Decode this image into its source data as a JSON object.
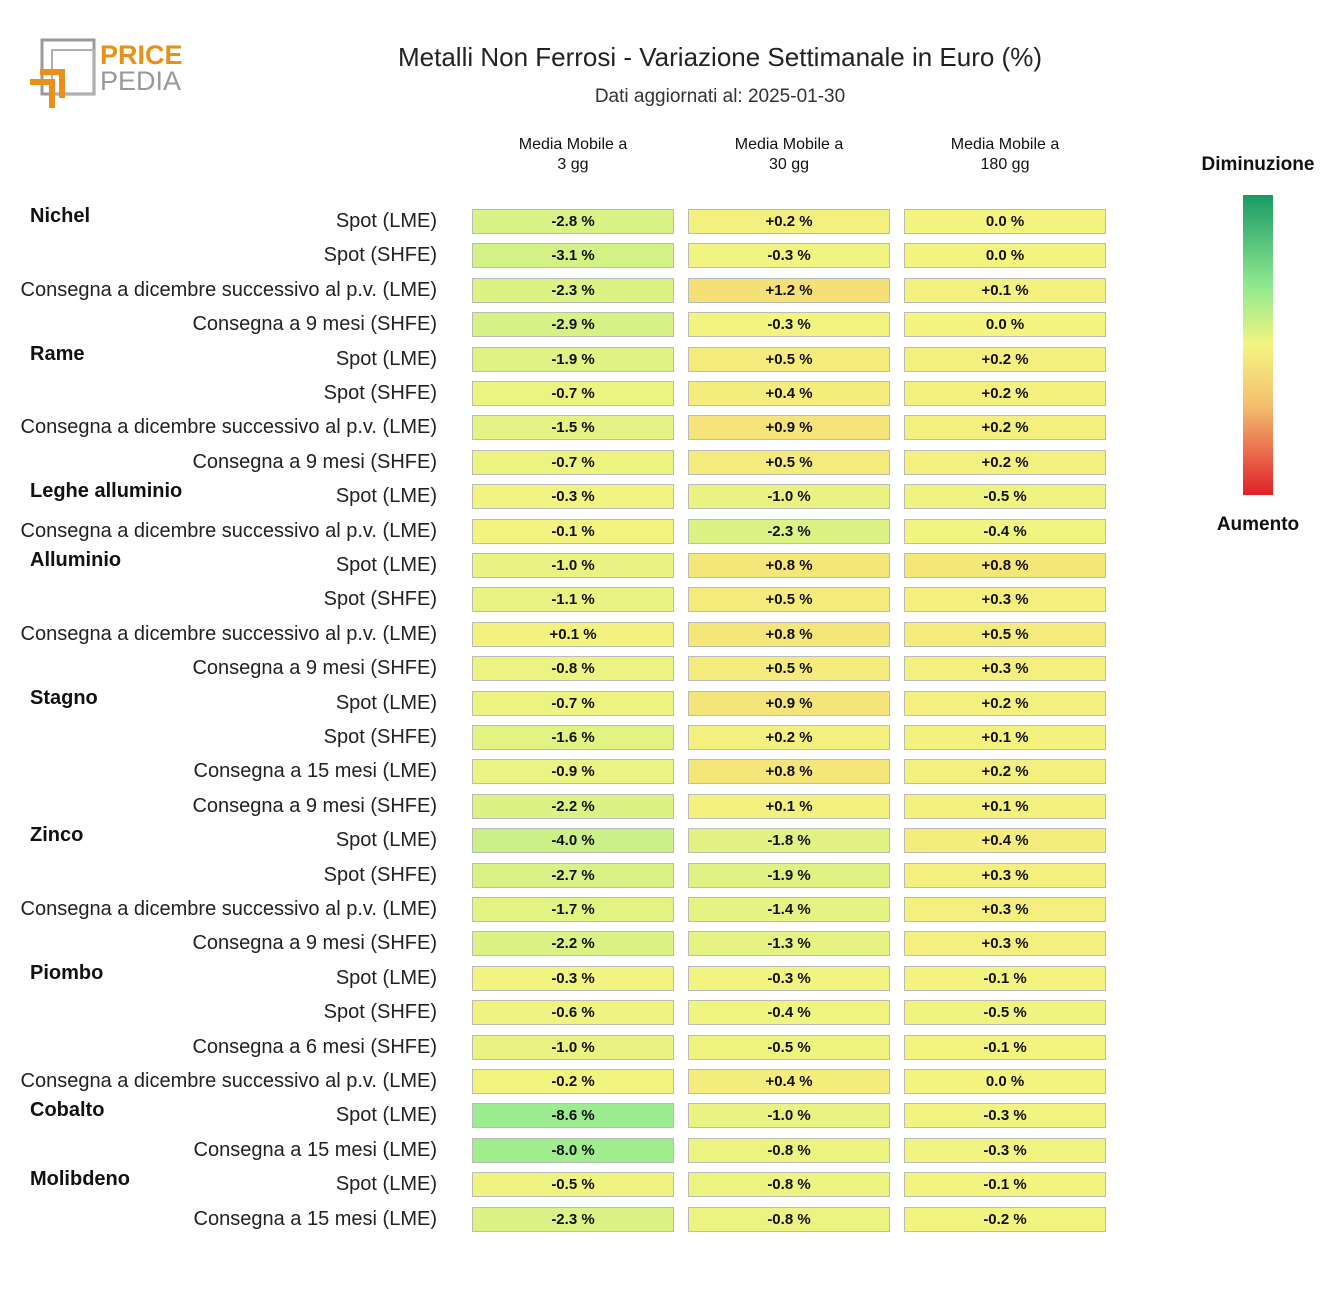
{
  "logo": {
    "line1": "PRICE",
    "line2": "PEDIA",
    "accent": "#e8901a",
    "gray": "#999999"
  },
  "title": "Metalli Non Ferrosi - Variazione Settimanale in Euro (%)",
  "subtitle": "Dati aggiornati al: 2025-01-30",
  "legend": {
    "top": "Diminuzione",
    "bottom": "Aumento"
  },
  "chart_data": {
    "type": "heatmap",
    "title": "Metalli Non Ferrosi - Variazione Settimanale in Euro (%)",
    "columns": [
      {
        "line1": "Media Mobile a",
        "line2": "3 gg"
      },
      {
        "line1": "Media Mobile a",
        "line2": "30 gg"
      },
      {
        "line1": "Media Mobile a",
        "line2": "180 gg"
      }
    ],
    "colorscale": {
      "decrease": "#1a9a66",
      "neutral": "#f4f480",
      "increase": "#e0202a"
    },
    "rows": [
      {
        "group": "Nichel",
        "label": "Spot (LME)",
        "values": [
          -2.8,
          0.2,
          0.0
        ],
        "text": [
          "-2.8 %",
          "+0.2 %",
          "0.0 %"
        ]
      },
      {
        "group": "",
        "label": "Spot (SHFE)",
        "values": [
          -3.1,
          -0.3,
          0.0
        ],
        "text": [
          "-3.1 %",
          "-0.3 %",
          "0.0 %"
        ]
      },
      {
        "group": "",
        "label": "Consegna a dicembre successivo al p.v. (LME)",
        "values": [
          -2.3,
          1.2,
          0.1
        ],
        "text": [
          "-2.3 %",
          "+1.2 %",
          "+0.1 %"
        ]
      },
      {
        "group": "",
        "label": "Consegna a 9 mesi (SHFE)",
        "values": [
          -2.9,
          -0.3,
          0.0
        ],
        "text": [
          "-2.9 %",
          "-0.3 %",
          "0.0 %"
        ]
      },
      {
        "group": "Rame",
        "label": "Spot (LME)",
        "values": [
          -1.9,
          0.5,
          0.2
        ],
        "text": [
          "-1.9 %",
          "+0.5 %",
          "+0.2 %"
        ]
      },
      {
        "group": "",
        "label": "Spot (SHFE)",
        "values": [
          -0.7,
          0.4,
          0.2
        ],
        "text": [
          "-0.7 %",
          "+0.4 %",
          "+0.2 %"
        ]
      },
      {
        "group": "",
        "label": "Consegna a dicembre successivo al p.v. (LME)",
        "values": [
          -1.5,
          0.9,
          0.2
        ],
        "text": [
          "-1.5 %",
          "+0.9 %",
          "+0.2 %"
        ]
      },
      {
        "group": "",
        "label": "Consegna a 9 mesi (SHFE)",
        "values": [
          -0.7,
          0.5,
          0.2
        ],
        "text": [
          "-0.7 %",
          "+0.5 %",
          "+0.2 %"
        ]
      },
      {
        "group": "Leghe alluminio",
        "label": "Spot (LME)",
        "values": [
          -0.3,
          -1.0,
          -0.5
        ],
        "text": [
          "-0.3 %",
          "-1.0 %",
          "-0.5 %"
        ]
      },
      {
        "group": "",
        "label": "Consegna a dicembre successivo al p.v. (LME)",
        "values": [
          -0.1,
          -2.3,
          -0.4
        ],
        "text": [
          "-0.1 %",
          "-2.3 %",
          "-0.4 %"
        ]
      },
      {
        "group": "Alluminio",
        "label": "Spot (LME)",
        "values": [
          -1.0,
          0.8,
          0.8
        ],
        "text": [
          "-1.0 %",
          "+0.8 %",
          "+0.8 %"
        ]
      },
      {
        "group": "",
        "label": "Spot (SHFE)",
        "values": [
          -1.1,
          0.5,
          0.3
        ],
        "text": [
          "-1.1 %",
          "+0.5 %",
          "+0.3 %"
        ]
      },
      {
        "group": "",
        "label": "Consegna a dicembre successivo al p.v. (LME)",
        "values": [
          0.1,
          0.8,
          0.5
        ],
        "text": [
          "+0.1 %",
          "+0.8 %",
          "+0.5 %"
        ]
      },
      {
        "group": "",
        "label": "Consegna a 9 mesi (SHFE)",
        "values": [
          -0.8,
          0.5,
          0.3
        ],
        "text": [
          "-0.8 %",
          "+0.5 %",
          "+0.3 %"
        ]
      },
      {
        "group": "Stagno",
        "label": "Spot (LME)",
        "values": [
          -0.7,
          0.9,
          0.2
        ],
        "text": [
          "-0.7 %",
          "+0.9 %",
          "+0.2 %"
        ]
      },
      {
        "group": "",
        "label": "Spot (SHFE)",
        "values": [
          -1.6,
          0.2,
          0.1
        ],
        "text": [
          "-1.6 %",
          "+0.2 %",
          "+0.1 %"
        ]
      },
      {
        "group": "",
        "label": "Consegna a 15 mesi (LME)",
        "values": [
          -0.9,
          0.8,
          0.2
        ],
        "text": [
          "-0.9 %",
          "+0.8 %",
          "+0.2 %"
        ]
      },
      {
        "group": "",
        "label": "Consegna a 9 mesi (SHFE)",
        "values": [
          -2.2,
          0.1,
          0.1
        ],
        "text": [
          "-2.2 %",
          "+0.1 %",
          "+0.1 %"
        ]
      },
      {
        "group": "Zinco",
        "label": "Spot (LME)",
        "values": [
          -4.0,
          -1.8,
          0.4
        ],
        "text": [
          "-4.0 %",
          "-1.8 %",
          "+0.4 %"
        ]
      },
      {
        "group": "",
        "label": "Spot (SHFE)",
        "values": [
          -2.7,
          -1.9,
          0.3
        ],
        "text": [
          "-2.7 %",
          "-1.9 %",
          "+0.3 %"
        ]
      },
      {
        "group": "",
        "label": "Consegna a dicembre successivo al p.v. (LME)",
        "values": [
          -1.7,
          -1.4,
          0.3
        ],
        "text": [
          "-1.7 %",
          "-1.4 %",
          "+0.3 %"
        ]
      },
      {
        "group": "",
        "label": "Consegna a 9 mesi (SHFE)",
        "values": [
          -2.2,
          -1.3,
          0.3
        ],
        "text": [
          "-2.2 %",
          "-1.3 %",
          "+0.3 %"
        ]
      },
      {
        "group": "Piombo",
        "label": "Spot (LME)",
        "values": [
          -0.3,
          -0.3,
          -0.1
        ],
        "text": [
          "-0.3 %",
          "-0.3 %",
          "-0.1 %"
        ]
      },
      {
        "group": "",
        "label": "Spot (SHFE)",
        "values": [
          -0.6,
          -0.4,
          -0.5
        ],
        "text": [
          "-0.6 %",
          "-0.4 %",
          "-0.5 %"
        ]
      },
      {
        "group": "",
        "label": "Consegna a 6 mesi (SHFE)",
        "values": [
          -1.0,
          -0.5,
          -0.1
        ],
        "text": [
          "-1.0 %",
          "-0.5 %",
          "-0.1 %"
        ]
      },
      {
        "group": "",
        "label": "Consegna a dicembre successivo al p.v. (LME)",
        "values": [
          -0.2,
          0.4,
          0.0
        ],
        "text": [
          "-0.2 %",
          "+0.4 %",
          "0.0 %"
        ]
      },
      {
        "group": "Cobalto",
        "label": "Spot (LME)",
        "values": [
          -8.6,
          -1.0,
          -0.3
        ],
        "text": [
          "-8.6 %",
          "-1.0 %",
          "-0.3 %"
        ]
      },
      {
        "group": "",
        "label": "Consegna a 15 mesi (LME)",
        "values": [
          -8.0,
          -0.8,
          -0.3
        ],
        "text": [
          "-8.0 %",
          "-0.8 %",
          "-0.3 %"
        ]
      },
      {
        "group": "Molibdeno",
        "label": "Spot (LME)",
        "values": [
          -0.5,
          -0.8,
          -0.1
        ],
        "text": [
          "-0.5 %",
          "-0.8 %",
          "-0.1 %"
        ]
      },
      {
        "group": "",
        "label": "Consegna a 15 mesi (LME)",
        "values": [
          -2.3,
          -0.8,
          -0.2
        ],
        "text": [
          "-2.3 %",
          "-0.8 %",
          "-0.2 %"
        ]
      }
    ]
  }
}
